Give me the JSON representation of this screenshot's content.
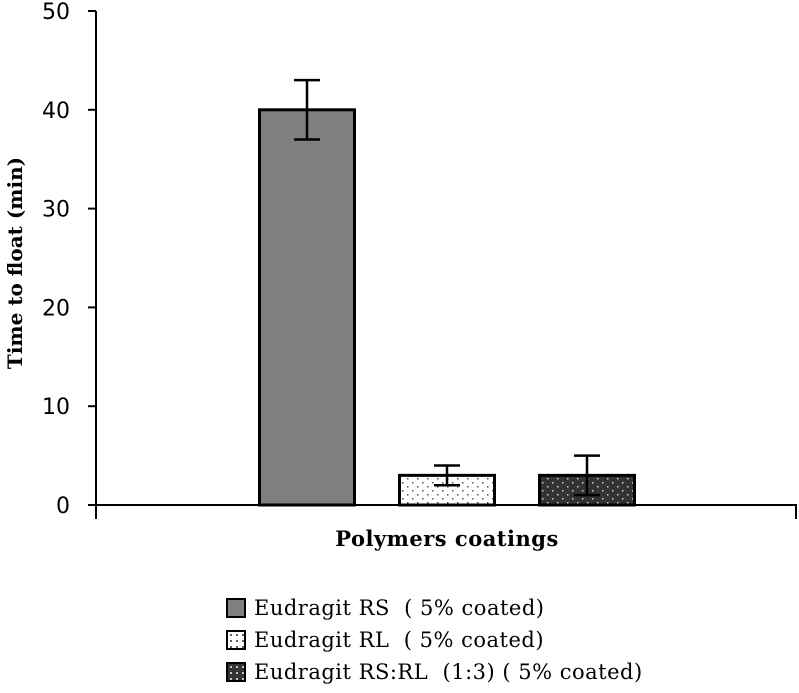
{
  "chart_data": {
    "type": "bar",
    "xlabel": "Polymers coatings",
    "ylabel": "Time to float (min)",
    "ylim": [
      0,
      50
    ],
    "yticks": [
      0,
      10,
      20,
      30,
      40,
      50
    ],
    "grid": false,
    "legend_position": "bottom",
    "series": [
      {
        "name": "Eudragit RS  ( 5% coated)",
        "value": 40,
        "error": 3,
        "fill": "solid-gray",
        "color": "#7f7f7f"
      },
      {
        "name": "Eudragit RL  ( 5% coated)",
        "value": 3,
        "error": 1,
        "fill": "white-dotted",
        "color": "#ffffff"
      },
      {
        "name": "Eudragit RS:RL  (1:3) ( 5% coated)",
        "value": 3,
        "error": 2,
        "fill": "dark-dotted",
        "color": "#333333"
      }
    ]
  }
}
